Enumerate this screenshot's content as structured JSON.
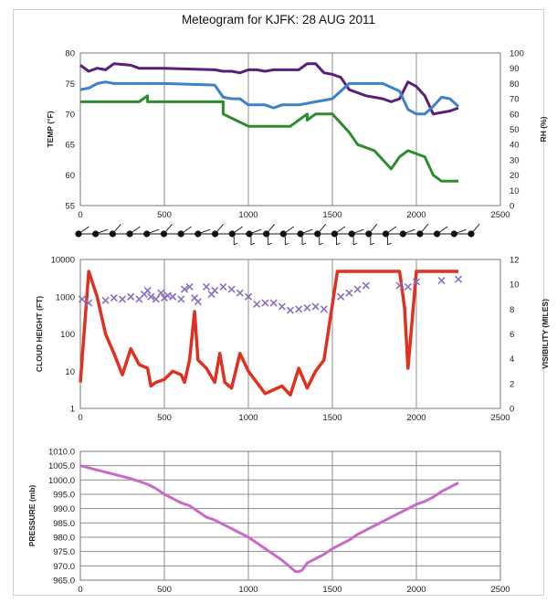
{
  "title": "Meteogram for KJFK: 28 AUG 2011",
  "colors": {
    "temperature": "#2e8b2e",
    "dewpoint_rh_purple": "#5b1f7a",
    "rh_blue": "#3b82c8",
    "cloud_height": "#e03020",
    "visibility": "#8a6fc4",
    "pressure": "#c86ac8",
    "station_model": "#111111"
  },
  "chart_data": [
    {
      "type": "line",
      "panel": "temperature-rh",
      "xlim": [
        0,
        2500
      ],
      "xticks": [
        "0",
        "500",
        "1000",
        "1500",
        "2000",
        "2500"
      ],
      "ylabel": "TEMP (°F)",
      "ylim": [
        55,
        80
      ],
      "yticks": [
        "55",
        "60",
        "65",
        "70",
        "75",
        "80"
      ],
      "y2label": "RH (%)",
      "y2lim": [
        0,
        100
      ],
      "y2ticks": [
        "0",
        "10",
        "20",
        "30",
        "40",
        "50",
        "60",
        "70",
        "80",
        "90",
        "100"
      ],
      "grid": "vertical",
      "series": [
        {
          "key": "temp",
          "axis": "left",
          "x": [
            0,
            100,
            200,
            350,
            400,
            400,
            500,
            800,
            850,
            850,
            1000,
            1200,
            1250,
            1350,
            1350,
            1400,
            1500,
            1600,
            1650,
            1750,
            1850,
            1900,
            1950,
            2050,
            2100,
            2150,
            2200,
            2250
          ],
          "y": [
            72,
            72,
            72,
            72,
            73,
            72,
            72,
            72,
            72,
            70,
            68,
            68,
            68,
            70,
            69,
            70,
            70,
            67,
            65,
            64,
            61,
            63,
            64,
            63,
            60,
            59,
            59,
            59
          ]
        },
        {
          "key": "purple",
          "axis": "right",
          "x": [
            0,
            50,
            100,
            150,
            200,
            300,
            350,
            500,
            800,
            850,
            900,
            950,
            1000,
            1050,
            1100,
            1150,
            1200,
            1300,
            1350,
            1400,
            1450,
            1500,
            1550,
            1600,
            1700,
            1800,
            1850,
            1900,
            1950,
            2000,
            2050,
            2100,
            2150,
            2200,
            2250
          ],
          "y": [
            92,
            88,
            90,
            89,
            93,
            92,
            90,
            90,
            89,
            88,
            88,
            87,
            89,
            89,
            88,
            89,
            89,
            89,
            93,
            93,
            87,
            86,
            84,
            76,
            72,
            70,
            68,
            70,
            81,
            78,
            72,
            60,
            61,
            62,
            64
          ]
        },
        {
          "key": "blue",
          "axis": "right",
          "x": [
            0,
            50,
            100,
            150,
            200,
            300,
            400,
            500,
            800,
            850,
            900,
            950,
            1000,
            1100,
            1150,
            1200,
            1300,
            1400,
            1500,
            1600,
            1700,
            1800,
            1900,
            1950,
            2000,
            2050,
            2100,
            2150,
            2200,
            2250
          ],
          "y": [
            76,
            77,
            80,
            81,
            80,
            80,
            80,
            80,
            79,
            71,
            70,
            70,
            66,
            66,
            64,
            66,
            66,
            68,
            70,
            80,
            80,
            80,
            75,
            63,
            60,
            60,
            65,
            71,
            70,
            65
          ]
        }
      ]
    },
    {
      "type": "line",
      "panel": "cloud-visibility",
      "xlim": [
        0,
        2500
      ],
      "xticks": [
        "0",
        "500",
        "1000",
        "1500",
        "2000",
        "2500"
      ],
      "ylabel": "CLOUD HEIGHT (FT)",
      "yscale": "log",
      "ylim": [
        1,
        10000
      ],
      "yticks": [
        "1",
        "10",
        "100",
        "1000",
        "10000"
      ],
      "y2label": "VISIBILITY (MILES)",
      "y2lim": [
        0,
        12
      ],
      "y2ticks": [
        "0",
        "2",
        "4",
        "6",
        "8",
        "10",
        "12"
      ],
      "grid": "vertical",
      "series": [
        {
          "key": "cloud",
          "axis": "left",
          "x": [
            0,
            50,
            100,
            150,
            200,
            250,
            300,
            350,
            400,
            420,
            450,
            500,
            550,
            600,
            620,
            650,
            680,
            700,
            750,
            800,
            830,
            860,
            900,
            950,
            1000,
            1100,
            1200,
            1250,
            1300,
            1350,
            1400,
            1450,
            1530,
            1850,
            1900,
            1930,
            1950,
            2000,
            2050,
            2100,
            2150,
            2250
          ],
          "y": [
            5,
            4800,
            1000,
            100,
            30,
            8,
            40,
            15,
            12,
            4,
            5,
            6,
            10,
            8,
            5,
            20,
            400,
            20,
            12,
            5,
            30,
            5,
            3.5,
            30,
            10,
            2.5,
            4,
            2.3,
            12,
            3.5,
            10,
            20,
            4800,
            4800,
            4800,
            500,
            12,
            4800,
            4800,
            4800,
            4800,
            4800
          ]
        },
        {
          "key": "vis",
          "axis": "right",
          "type": "scatter",
          "x": [
            10,
            50,
            150,
            200,
            250,
            300,
            350,
            380,
            400,
            420,
            450,
            480,
            500,
            520,
            550,
            600,
            620,
            650,
            680,
            700,
            750,
            780,
            800,
            850,
            900,
            950,
            1000,
            1050,
            1100,
            1150,
            1200,
            1250,
            1300,
            1350,
            1400,
            1450,
            1550,
            1600,
            1650,
            1700,
            1900,
            1950,
            2000,
            2150,
            2250
          ],
          "y": [
            8.8,
            8.5,
            8.7,
            8.9,
            8.8,
            9.0,
            8.8,
            9.2,
            9.5,
            9.0,
            8.8,
            9.3,
            8.9,
            9.1,
            9.0,
            8.8,
            9.6,
            9.8,
            8.9,
            8.6,
            9.8,
            9.2,
            9.5,
            9.8,
            9.6,
            9.3,
            9.0,
            8.4,
            8.5,
            8.5,
            8.2,
            7.9,
            8.0,
            8.1,
            8.2,
            8.0,
            9.0,
            9.3,
            9.6,
            9.9,
            9.9,
            9.8,
            10.2,
            10.3,
            10.4
          ]
        }
      ]
    },
    {
      "type": "line",
      "panel": "pressure",
      "xlim": [
        0,
        2500
      ],
      "xticks": [
        "0",
        "500",
        "1000",
        "1500",
        "2000",
        "2500"
      ],
      "ylabel": "PRESSURE (mb)",
      "ylim": [
        965,
        1010
      ],
      "yticks": [
        "965.0",
        "970.0",
        "975.0",
        "980.0",
        "985.0",
        "990.0",
        "995.0",
        "1000.0",
        "1005.0",
        "1010.0"
      ],
      "grid": "both",
      "series": [
        {
          "key": "pressure",
          "axis": "left",
          "x": [
            0,
            100,
            200,
            300,
            400,
            450,
            500,
            550,
            600,
            650,
            700,
            750,
            800,
            850,
            900,
            950,
            1000,
            1050,
            1100,
            1150,
            1200,
            1250,
            1280,
            1300,
            1320,
            1350,
            1400,
            1450,
            1500,
            1550,
            1600,
            1650,
            1700,
            1750,
            1800,
            1850,
            1900,
            1950,
            2000,
            2050,
            2100,
            2150,
            2200,
            2250
          ],
          "y": [
            1005,
            1003.5,
            1002,
            1000.5,
            998.5,
            997,
            995,
            993.5,
            992,
            991,
            989,
            987,
            986,
            984.5,
            983,
            981.5,
            980,
            978,
            976,
            974,
            972,
            969.5,
            968,
            968,
            968.5,
            971,
            972.5,
            974,
            976,
            977.5,
            979,
            981,
            982.5,
            984,
            985.5,
            987,
            988.5,
            990,
            991.5,
            992.5,
            994,
            996,
            997.5,
            999
          ]
        }
      ]
    }
  ]
}
